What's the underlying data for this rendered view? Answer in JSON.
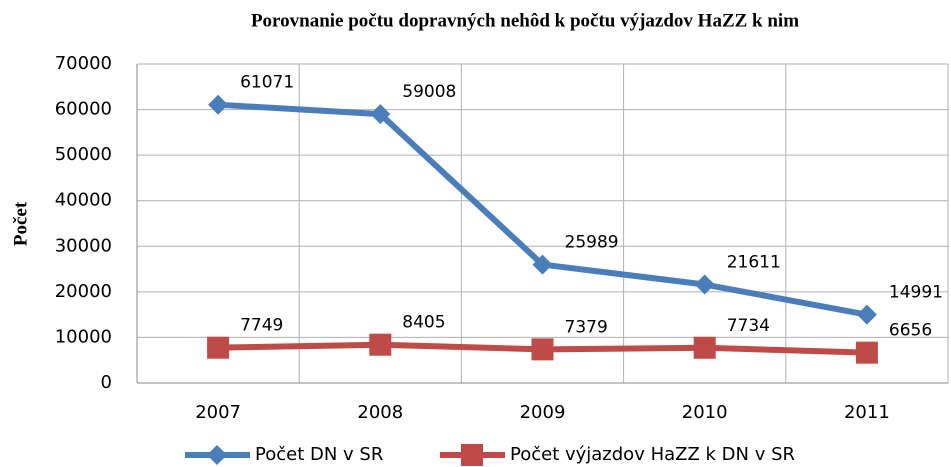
{
  "chart_data": {
    "type": "line",
    "title": "Porovnanie počtu dopravných nehôd k počtu výjazdov HaZZ k nim",
    "y_label": "Počet",
    "categories": [
      "2007",
      "2008",
      "2009",
      "2010",
      "2011"
    ],
    "series": [
      {
        "name": "Počet DN v SR",
        "color": "#4a7ebb",
        "marker": "diamond",
        "values": [
          61071,
          59008,
          25989,
          21611,
          14991
        ]
      },
      {
        "name": "Počet výjazdov HaZZ k DN v SR",
        "color": "#be4b48",
        "marker": "square",
        "values": [
          7749,
          8405,
          7379,
          7734,
          6656
        ]
      }
    ],
    "ylim": [
      0,
      70000
    ],
    "yticks": [
      0,
      10000,
      20000,
      30000,
      40000,
      50000,
      60000,
      70000
    ],
    "grid": true,
    "legend": "bottom"
  }
}
